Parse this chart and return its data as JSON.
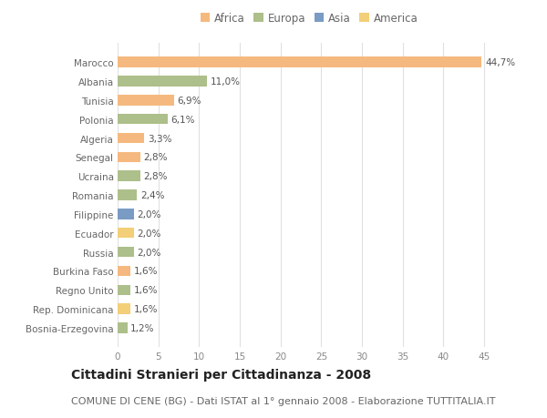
{
  "countries": [
    "Marocco",
    "Albania",
    "Tunisia",
    "Polonia",
    "Algeria",
    "Senegal",
    "Ucraina",
    "Romania",
    "Filippine",
    "Ecuador",
    "Russia",
    "Burkina Faso",
    "Regno Unito",
    "Rep. Dominicana",
    "Bosnia-Erzegovina"
  ],
  "values": [
    44.7,
    11.0,
    6.9,
    6.1,
    3.3,
    2.8,
    2.8,
    2.4,
    2.0,
    2.0,
    2.0,
    1.6,
    1.6,
    1.6,
    1.2
  ],
  "labels": [
    "44,7%",
    "11,0%",
    "6,9%",
    "6,1%",
    "3,3%",
    "2,8%",
    "2,8%",
    "2,4%",
    "2,0%",
    "2,0%",
    "2,0%",
    "1,6%",
    "1,6%",
    "1,6%",
    "1,2%"
  ],
  "continents": [
    "Africa",
    "Europa",
    "Africa",
    "Europa",
    "Africa",
    "Africa",
    "Europa",
    "Europa",
    "Asia",
    "America",
    "Europa",
    "Africa",
    "Europa",
    "America",
    "Europa"
  ],
  "continent_colors": {
    "Africa": "#F5B97F",
    "Europa": "#ADBF8A",
    "Asia": "#7A9BC4",
    "America": "#F2CF78"
  },
  "legend_order": [
    "Africa",
    "Europa",
    "Asia",
    "America"
  ],
  "title": "Cittadini Stranieri per Cittadinanza - 2008",
  "subtitle": "COMUNE DI CENE (BG) - Dati ISTAT al 1° gennaio 2008 - Elaborazione TUTTITALIA.IT",
  "xlim": [
    0,
    47
  ],
  "xticks": [
    0,
    5,
    10,
    15,
    20,
    25,
    30,
    35,
    40,
    45
  ],
  "background_color": "#ffffff",
  "grid_color": "#e0e0e0",
  "bar_height": 0.55,
  "title_fontsize": 10,
  "subtitle_fontsize": 8,
  "label_fontsize": 7.5,
  "tick_fontsize": 7.5,
  "legend_fontsize": 8.5
}
